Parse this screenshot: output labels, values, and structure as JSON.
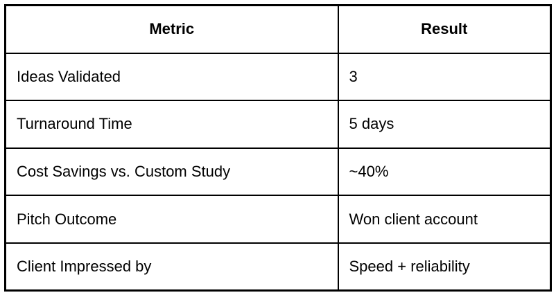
{
  "chart_data": {
    "type": "table",
    "columns": [
      "Metric",
      "Result"
    ],
    "rows": [
      {
        "metric": "Ideas Validated",
        "result": "3"
      },
      {
        "metric": "Turnaround Time",
        "result": "5 days"
      },
      {
        "metric": "Cost Savings vs. Custom Study",
        "result": "~40%"
      },
      {
        "metric": "Pitch Outcome",
        "result": "Won client account"
      },
      {
        "metric": "Client Impressed by",
        "result": "Speed + reliability"
      }
    ]
  },
  "colors": {
    "border": "#000000",
    "text": "#000000",
    "background": "#ffffff"
  }
}
